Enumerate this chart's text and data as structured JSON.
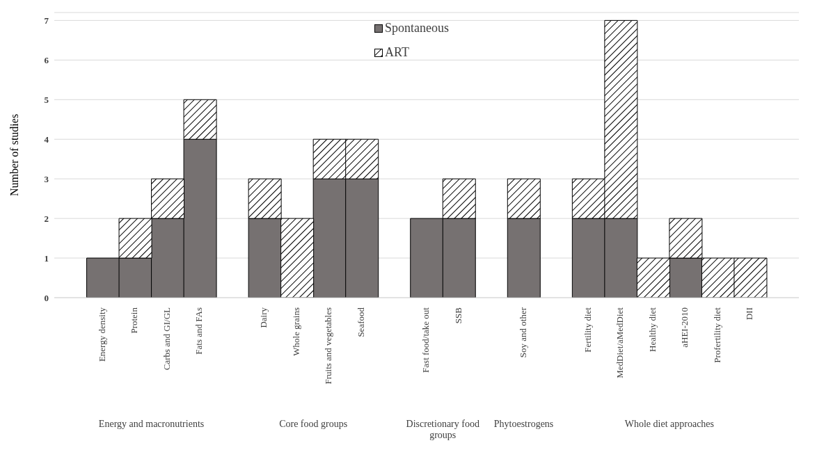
{
  "chart_data": {
    "type": "bar",
    "stacked": true,
    "ylabel": "Number of studies",
    "categories": [
      null,
      "Energy density",
      "Protein",
      "Carbs and GI/GL",
      "Fats and FAs",
      null,
      "Dairy",
      "Whole grains",
      "Fruits and vegetables",
      "Seafood",
      null,
      "Fast food/take out",
      "SSB",
      null,
      "Soy and other",
      null,
      "Fertility diet",
      "MedDiet/aMedDiet",
      "Healthy diet",
      "aHEI-2010",
      "Profertility diet",
      "DII",
      null
    ],
    "series": [
      {
        "name": "Spontaneous",
        "color": "#767171",
        "values": [
          null,
          1,
          1,
          2,
          4,
          null,
          2,
          0,
          3,
          3,
          null,
          2,
          2,
          null,
          2,
          null,
          2,
          2,
          0,
          1,
          0,
          0,
          null
        ]
      },
      {
        "name": "ART",
        "color": "#000000",
        "values": [
          null,
          0,
          1,
          1,
          1,
          null,
          1,
          2,
          1,
          1,
          null,
          0,
          1,
          null,
          1,
          null,
          1,
          5,
          1,
          1,
          1,
          1,
          null
        ]
      }
    ],
    "annotations": [
      "Energy and macronutrients",
      "Core food groups",
      "Discretionary food groups",
      "Phytoestrogens",
      "Whole diet approaches"
    ],
    "ylim": [
      0,
      7.2
    ],
    "yticks": [
      0,
      1,
      2,
      3,
      4,
      5,
      6,
      7
    ],
    "grid": "y",
    "legend": "top"
  }
}
